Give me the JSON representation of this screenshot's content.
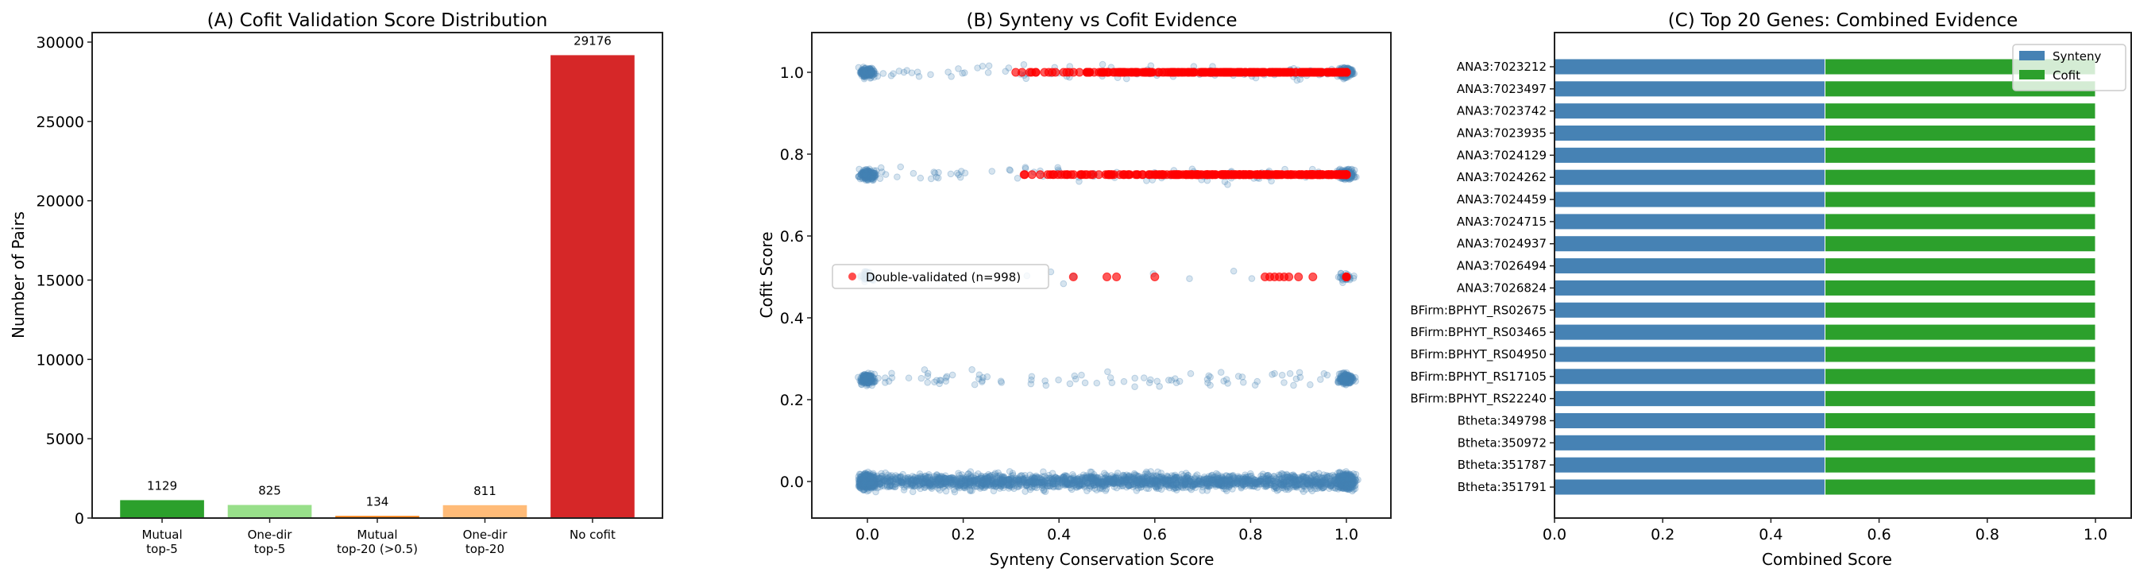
{
  "chart_data": [
    {
      "type": "bar",
      "title": "(A) Cofit Validation Score Distribution",
      "xlabel": "",
      "ylabel": "Number of Pairs",
      "ylim": [
        0,
        30600
      ],
      "yticks": [
        "0",
        "5000",
        "10000",
        "15000",
        "20000",
        "25000",
        "30000"
      ],
      "categories": [
        "Mutual\ntop-5",
        "One-dir\ntop-5",
        "Mutual\ntop-20 (>0.5)",
        "One-dir\ntop-20",
        "No cofit"
      ],
      "values": [
        1129,
        825,
        134,
        811,
        29176
      ],
      "data_labels": [
        "1129",
        "825",
        "134",
        "811",
        "29176"
      ],
      "colors": [
        "#2ca02c",
        "#98df8a",
        "#ff7f0e",
        "#ffbb78",
        "#d62728"
      ]
    },
    {
      "type": "scatter",
      "title": "(B) Synteny vs Cofit Evidence",
      "xlabel": "Synteny Conservation Score",
      "ylabel": "Cofit Score",
      "xlim": [
        -0.09,
        1.09
      ],
      "ylim": [
        -0.09,
        1.09
      ],
      "xticks": [
        "0.0",
        "0.2",
        "0.4",
        "0.6",
        "0.8",
        "1.0"
      ],
      "yticks": [
        "0.0",
        "0.2",
        "0.4",
        "0.6",
        "0.8",
        "1.0"
      ],
      "cofit_levels": [
        0.0,
        0.25,
        0.5,
        0.75,
        1.0
      ],
      "series": [
        {
          "role": "all pairs",
          "color": "#4682b4",
          "alpha": 0.25
        },
        {
          "name": "Double-validated (n=998)",
          "color": "#ff0000",
          "alpha": 0.7
        }
      ],
      "legend": {
        "label": "Double-validated (n=998)",
        "placement": "center-left"
      }
    },
    {
      "type": "bar",
      "orientation": "horizontal-stacked",
      "title": "(C) Top 20 Genes: Combined Evidence",
      "xlabel": "Combined Score",
      "xlim": [
        0,
        1.05
      ],
      "xticks": [
        "0.0",
        "0.2",
        "0.4",
        "0.6",
        "0.8",
        "1.0"
      ],
      "categories": [
        "ANA3:7023212",
        "ANA3:7023497",
        "ANA3:7023742",
        "ANA3:7023935",
        "ANA3:7024129",
        "ANA3:7024262",
        "ANA3:7024459",
        "ANA3:7024715",
        "ANA3:7024937",
        "ANA3:7026494",
        "ANA3:7026824",
        "BFirm:BPHYT_RS02675",
        "BFirm:BPHYT_RS03465",
        "BFirm:BPHYT_RS04950",
        "BFirm:BPHYT_RS17105",
        "BFirm:BPHYT_RS22240",
        "Btheta:349798",
        "Btheta:350972",
        "Btheta:351787",
        "Btheta:351791"
      ],
      "series": [
        {
          "name": "Synteny",
          "color": "#4682b4",
          "values": [
            0.5,
            0.5,
            0.5,
            0.5,
            0.5,
            0.5,
            0.5,
            0.5,
            0.5,
            0.5,
            0.5,
            0.5,
            0.5,
            0.5,
            0.5,
            0.5,
            0.5,
            0.5,
            0.5,
            0.5
          ]
        },
        {
          "name": "Cofit",
          "color": "#2ca02c",
          "values": [
            0.5,
            0.5,
            0.5,
            0.5,
            0.5,
            0.5,
            0.5,
            0.5,
            0.5,
            0.5,
            0.5,
            0.5,
            0.5,
            0.5,
            0.5,
            0.5,
            0.5,
            0.5,
            0.5,
            0.5
          ]
        }
      ],
      "legend": {
        "placement": "top-right"
      }
    }
  ]
}
